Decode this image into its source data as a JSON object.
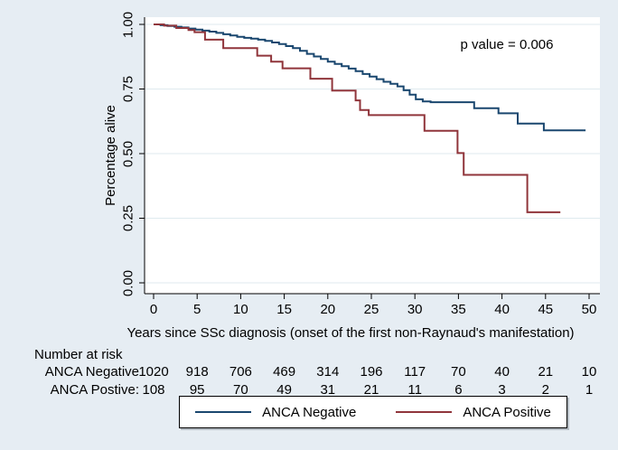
{
  "figure": {
    "p_value_text": "p value = 0.006"
  },
  "colors": {
    "background": "#e6edf3",
    "plot_background": "#ffffff",
    "grid": "#dfeaef",
    "axis": "#000000",
    "anca_negative": "#1a476f",
    "anca_positive": "#90353b"
  },
  "y_axis": {
    "label": "Percentage alive",
    "ticks": [
      "0.00",
      "0.25",
      "0.50",
      "0.75",
      "1.00"
    ]
  },
  "x_axis": {
    "label": "Years since SSc diagnosis (onset of the first non-Raynaud's manifestation)",
    "ticks": [
      "0",
      "5",
      "10",
      "15",
      "20",
      "25",
      "30",
      "35",
      "40",
      "45",
      "50"
    ]
  },
  "risk_table": {
    "title": "Number at risk",
    "rows": [
      {
        "label": "ANCA Negative",
        "counts": [
          "1020",
          "918",
          "706",
          "469",
          "314",
          "196",
          "117",
          "70",
          "40",
          "21",
          "10"
        ]
      },
      {
        "label": "ANCA Postive:",
        "counts": [
          "108",
          "95",
          "70",
          "49",
          "31",
          "21",
          "11",
          "6",
          "3",
          "2",
          "1"
        ]
      }
    ]
  },
  "legend": {
    "items": [
      {
        "label": "ANCA Negative",
        "color": "#1a476f"
      },
      {
        "label": "ANCA Positive",
        "color": "#90353b"
      }
    ]
  },
  "chart_data": {
    "type": "line",
    "variant": "kaplan_meier_step",
    "title": "",
    "xlabel": "Years since SSc diagnosis (onset of the first non-Raynaud's manifestation)",
    "ylabel": "Percentage alive",
    "xlim": [
      0,
      50
    ],
    "ylim": [
      0.0,
      1.0
    ],
    "x_ticks": [
      0,
      5,
      10,
      15,
      20,
      25,
      30,
      35,
      40,
      45,
      50
    ],
    "y_ticks": [
      0.0,
      0.25,
      0.5,
      0.75,
      1.0
    ],
    "grid": "horizontal",
    "legend_position": "bottom",
    "annotation": {
      "text": "p value = 0.006",
      "x": 40.5,
      "y": 0.95
    },
    "series": [
      {
        "name": "ANCA Negative",
        "color": "#1a476f",
        "end_x": 49.6,
        "points": [
          [
            0,
            1.0
          ],
          [
            0.8,
            0.997
          ],
          [
            1.6,
            0.994
          ],
          [
            2.4,
            0.991
          ],
          [
            3.2,
            0.988
          ],
          [
            4.0,
            0.984
          ],
          [
            4.8,
            0.98
          ],
          [
            5.6,
            0.976
          ],
          [
            6.4,
            0.972
          ],
          [
            7.2,
            0.967
          ],
          [
            8.0,
            0.962
          ],
          [
            8.8,
            0.957
          ],
          [
            9.6,
            0.952
          ],
          [
            10.4,
            0.948
          ],
          [
            11.2,
            0.945
          ],
          [
            12.0,
            0.941
          ],
          [
            12.8,
            0.936
          ],
          [
            13.6,
            0.93
          ],
          [
            14.4,
            0.924
          ],
          [
            15.2,
            0.916
          ],
          [
            16.0,
            0.908
          ],
          [
            16.8,
            0.898
          ],
          [
            17.6,
            0.886
          ],
          [
            18.4,
            0.876
          ],
          [
            19.2,
            0.866
          ],
          [
            20.0,
            0.856
          ],
          [
            20.8,
            0.847
          ],
          [
            21.6,
            0.838
          ],
          [
            22.4,
            0.829
          ],
          [
            23.2,
            0.819
          ],
          [
            24.0,
            0.808
          ],
          [
            24.8,
            0.798
          ],
          [
            25.6,
            0.788
          ],
          [
            26.4,
            0.778
          ],
          [
            27.2,
            0.77
          ],
          [
            28.0,
            0.76
          ],
          [
            28.7,
            0.745
          ],
          [
            29.4,
            0.728
          ],
          [
            30.1,
            0.71
          ],
          [
            30.9,
            0.702
          ],
          [
            31.8,
            0.699
          ],
          [
            36.8,
            0.676
          ],
          [
            39.6,
            0.656
          ],
          [
            41.8,
            0.616
          ],
          [
            44.8,
            0.59
          ]
        ]
      },
      {
        "name": "ANCA Positive",
        "color": "#90353b",
        "end_x": 46.7,
        "points": [
          [
            0,
            1.0
          ],
          [
            1.2,
            0.995
          ],
          [
            2.6,
            0.986
          ],
          [
            4.0,
            0.978
          ],
          [
            4.7,
            0.97
          ],
          [
            5.9,
            0.941
          ],
          [
            8.0,
            0.908
          ],
          [
            11.9,
            0.879
          ],
          [
            13.5,
            0.856
          ],
          [
            14.8,
            0.83
          ],
          [
            18.0,
            0.79
          ],
          [
            20.5,
            0.744
          ],
          [
            23.2,
            0.706
          ],
          [
            23.7,
            0.669
          ],
          [
            24.7,
            0.649
          ],
          [
            31.1,
            0.588
          ],
          [
            34.9,
            0.502
          ],
          [
            35.6,
            0.418
          ],
          [
            42.9,
            0.273
          ]
        ]
      }
    ],
    "number_at_risk": {
      "times": [
        0,
        5,
        10,
        15,
        20,
        25,
        30,
        35,
        40,
        45,
        50
      ],
      "ANCA Negative": [
        1020,
        918,
        706,
        469,
        314,
        196,
        117,
        70,
        40,
        21,
        10
      ],
      "ANCA Postive": [
        108,
        95,
        70,
        49,
        31,
        21,
        11,
        6,
        3,
        2,
        1
      ]
    }
  }
}
